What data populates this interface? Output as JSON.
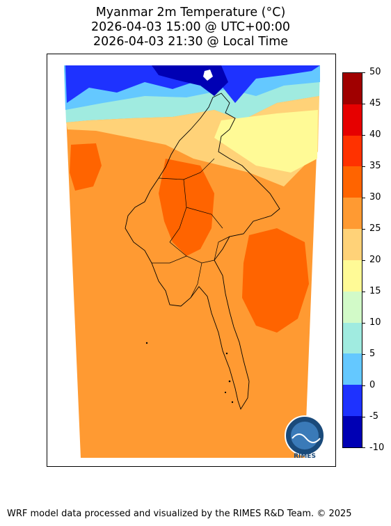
{
  "title": {
    "line1": "Myanmar 2m Temperature (°C)",
    "line2": "2026-04-03 15:00 @ UTC+00:00",
    "line3": "2026-04-03 21:30 @ Local Time"
  },
  "colorbar": {
    "levels": [
      "-10",
      "-5",
      "0",
      "5",
      "10",
      "15",
      "20",
      "25",
      "30",
      "35",
      "40",
      "45",
      "50"
    ],
    "colors": [
      "#0000b4",
      "#1e32ff",
      "#64c8ff",
      "#a0ebe0",
      "#d2fac8",
      "#fffa96",
      "#ffd278",
      "#ff9a32",
      "#ff6400",
      "#ff3200",
      "#e60000",
      "#a00000"
    ]
  },
  "logo": {
    "text": "RIMES"
  },
  "footer": "WRF model data processed and visualized by the RIMES R&D Team. © 2025"
}
